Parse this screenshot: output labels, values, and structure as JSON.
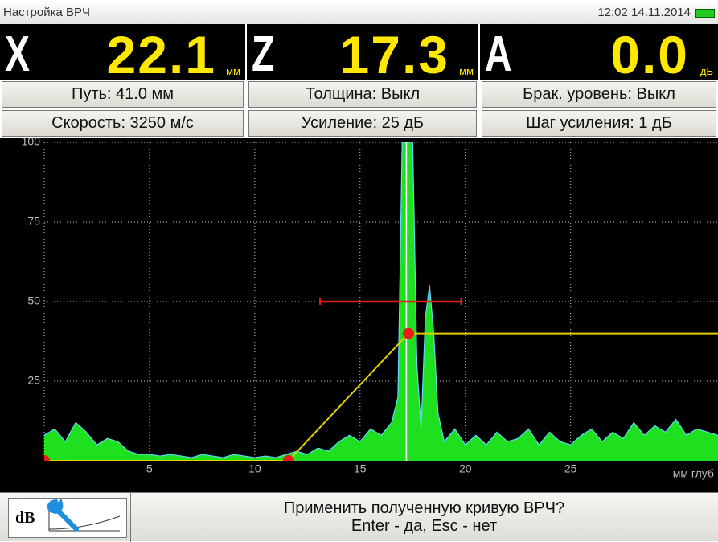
{
  "header": {
    "title": "Настройка ВРЧ",
    "datetime": "12:02 14.11.2014"
  },
  "readouts": [
    {
      "label": "X",
      "value": "22.1",
      "unit": "мм"
    },
    {
      "label": "Z",
      "value": "17.3",
      "unit": "мм"
    },
    {
      "label": "A",
      "value": "0.0",
      "unit": "дБ"
    }
  ],
  "info": [
    [
      "Путь: 41.0 мм",
      "Толщина: Выкл",
      "Брак. уровень: Выкл"
    ],
    [
      "Скорость: 3250 м/с",
      "Усиление: 25 дБ",
      "Шаг усиления: 1 дБ"
    ]
  ],
  "chart_data": {
    "type": "area",
    "x_label": "мм глуб",
    "x": [
      0,
      0.5,
      1,
      1.5,
      2,
      2.5,
      3,
      3.5,
      4,
      4.5,
      5,
      5.5,
      6,
      6.5,
      7,
      7.5,
      8,
      8.5,
      9,
      9.5,
      10,
      10.5,
      11,
      11.5,
      12,
      12.5,
      13,
      13.5,
      14,
      14.5,
      15,
      15.5,
      16,
      16.5,
      16.8,
      17,
      17.5,
      17.7,
      17.9,
      18.1,
      18.3,
      18.5,
      18.7,
      19,
      19.5,
      20,
      20.5,
      21,
      21.5,
      22,
      22.5,
      23,
      23.5,
      24,
      24.5,
      25,
      25.5,
      26,
      26.5,
      27,
      27.5,
      28,
      28.5,
      29,
      29.5,
      30,
      30.5,
      31,
      31.5,
      32
    ],
    "values": [
      8,
      10,
      6,
      12,
      9,
      5,
      7,
      6,
      3,
      2,
      2,
      1.5,
      2,
      1.5,
      1,
      2,
      1.5,
      1,
      2,
      1.5,
      1,
      1.5,
      1,
      2,
      3,
      2,
      4,
      3,
      6,
      8,
      6,
      10,
      8,
      12,
      20,
      100,
      100,
      30,
      10,
      45,
      55,
      40,
      15,
      6,
      10,
      5,
      8,
      5,
      9,
      6,
      7,
      10,
      5,
      9,
      6,
      5,
      8,
      10,
      6,
      9,
      7,
      12,
      8,
      11,
      9,
      13,
      8,
      10,
      9,
      8
    ],
    "color": "#1fe01f",
    "outline_color": "#5fd8ff",
    "xlim": [
      0,
      32
    ],
    "ylim": [
      0,
      100
    ],
    "xticks": [
      5,
      10,
      15,
      20,
      25
    ],
    "yticks": [
      25,
      50,
      75,
      100
    ],
    "grid": true,
    "cursor_x": 17.2,
    "tcg": {
      "x": [
        0,
        11.6,
        17.3
      ],
      "values": [
        0,
        0,
        40
      ],
      "color": "#e0d000"
    },
    "gate": {
      "start": 13.1,
      "end": 19.8,
      "level": 50,
      "color": "#e02020"
    }
  },
  "footer": {
    "icon_label": "dB",
    "message": [
      "Применить полученную кривую ВРЧ?",
      "Enter - да, Esc - нет"
    ]
  }
}
